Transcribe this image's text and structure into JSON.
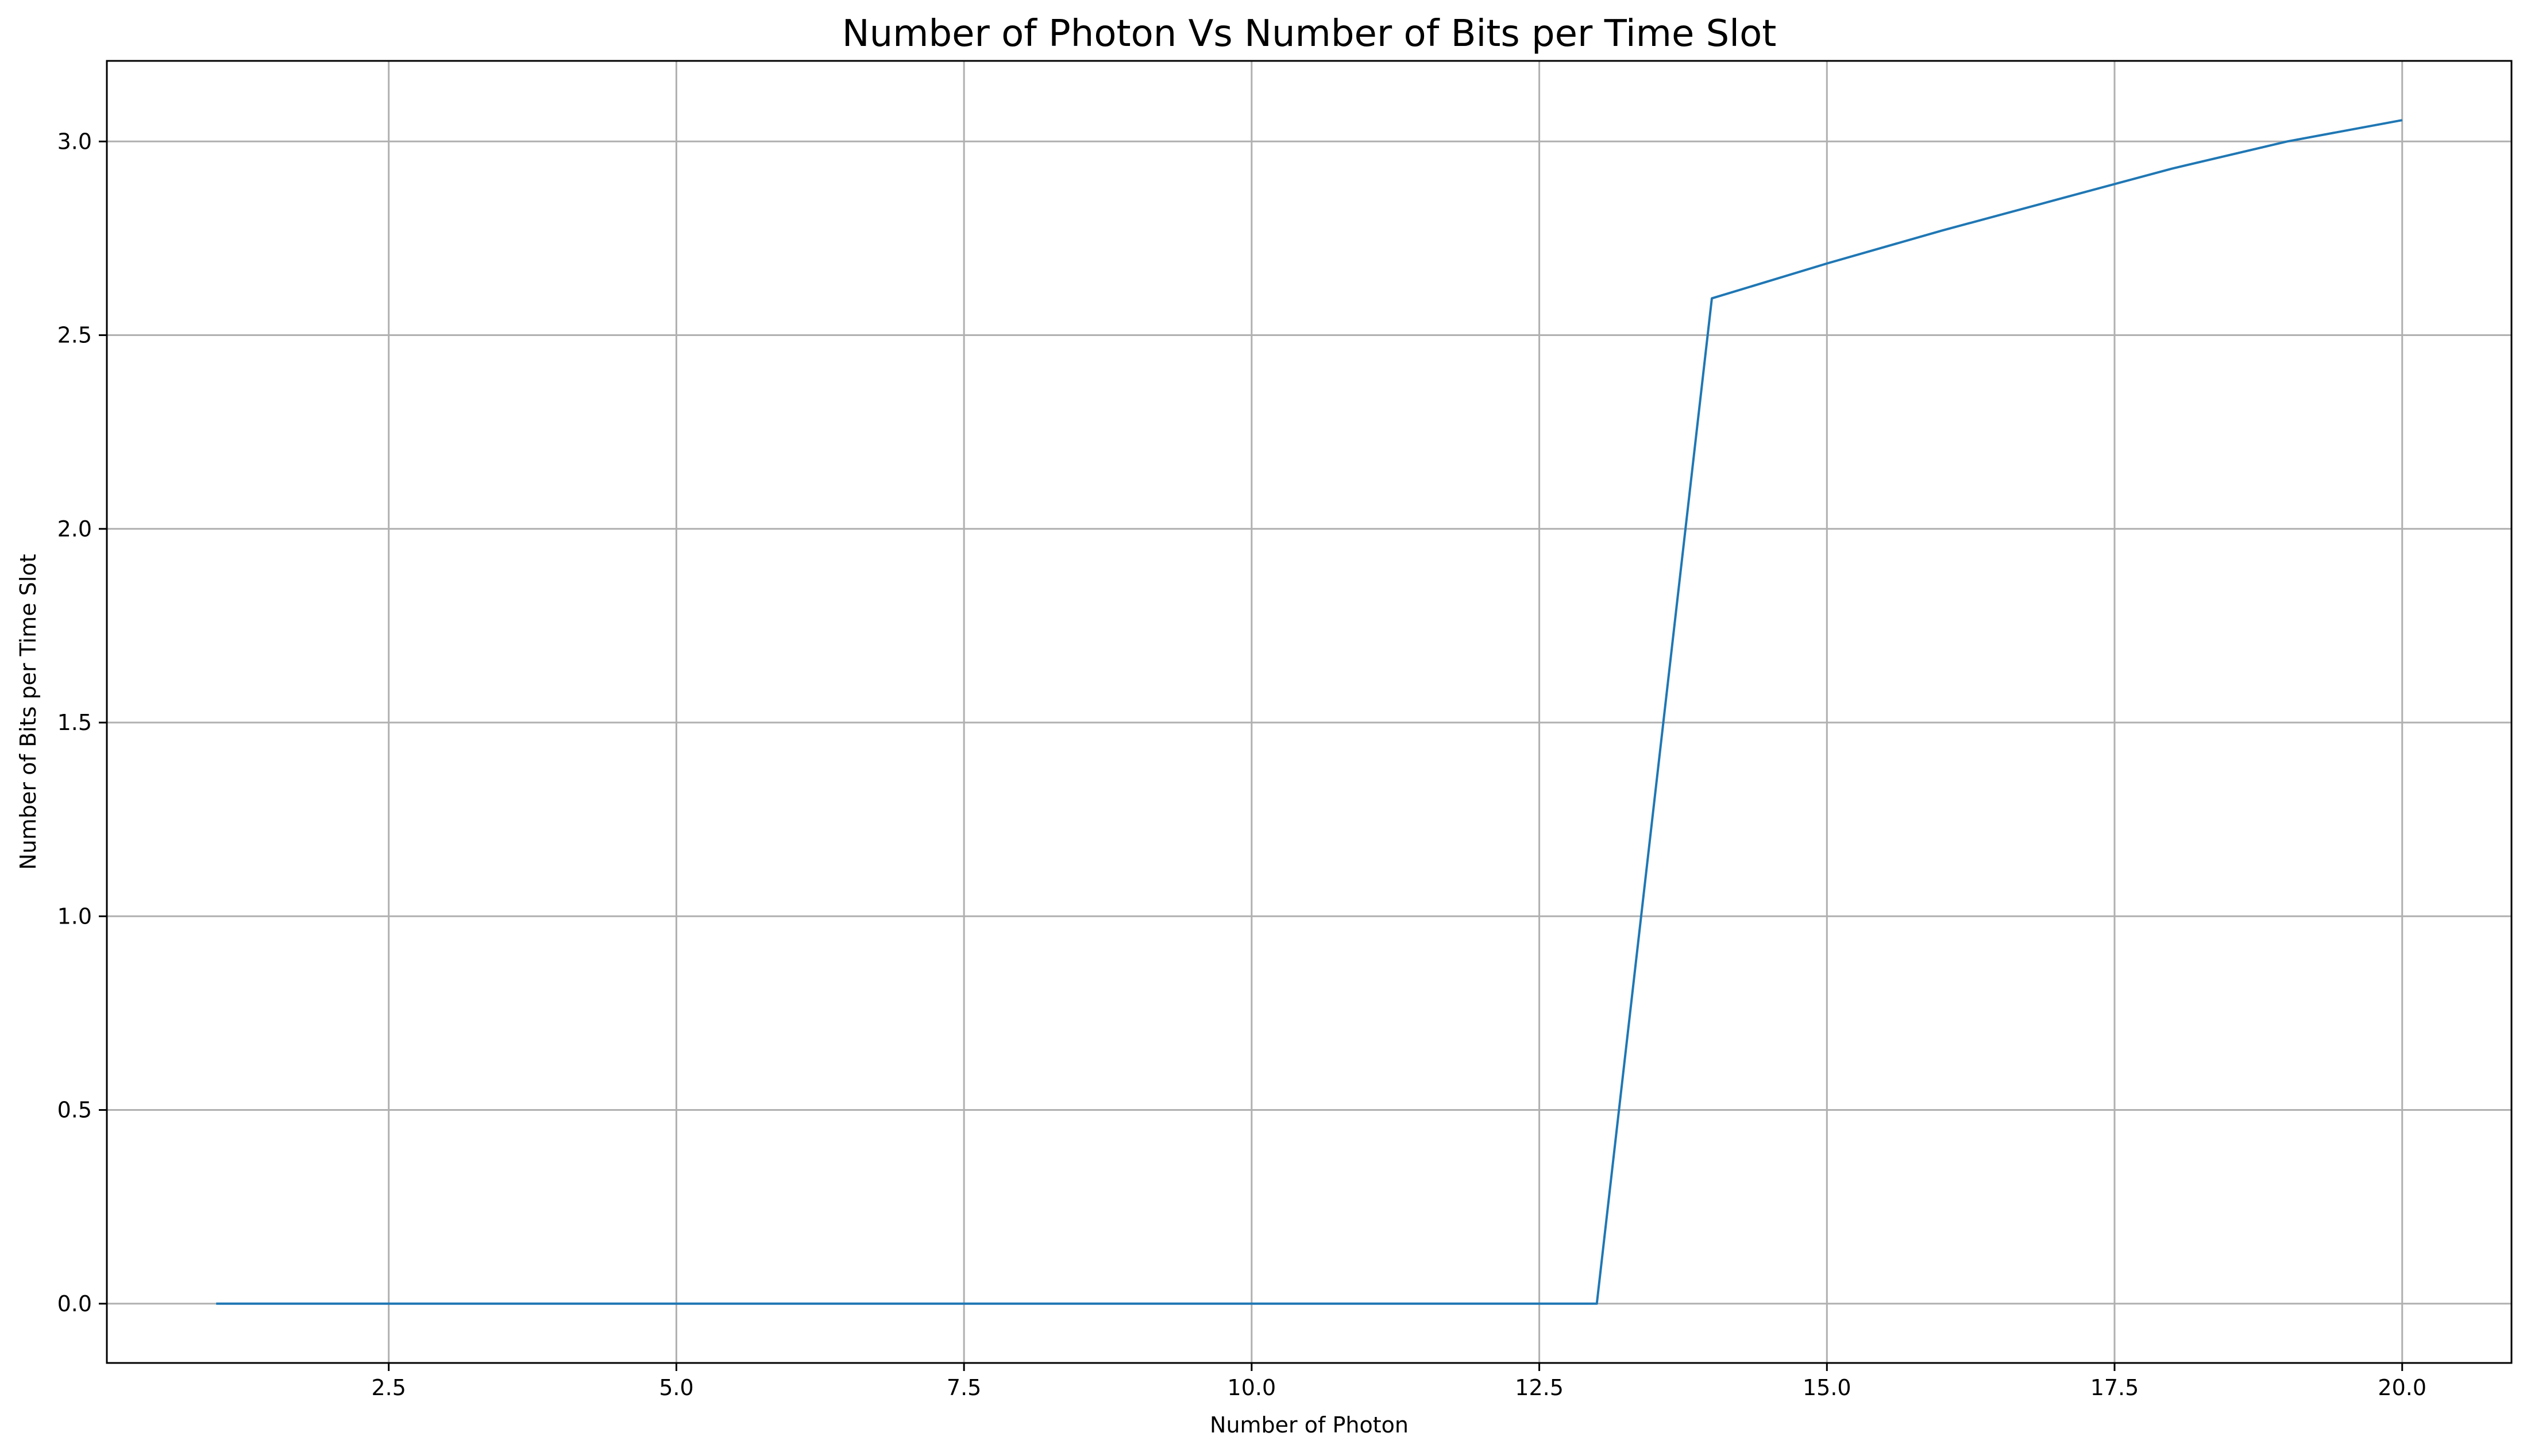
{
  "chart_data": {
    "type": "line",
    "title": "Number of Photon Vs Number of Bits per Time Slot",
    "xlabel": "Number of Photon",
    "ylabel": "Number of Bits per Time Slot",
    "xlim": [
      0.05,
      20.95
    ],
    "ylim": [
      -0.153,
      3.208
    ],
    "xticks": [
      2.5,
      5.0,
      7.5,
      10.0,
      12.5,
      15.0,
      17.5,
      20.0
    ],
    "xtick_labels": [
      "2.5",
      "5.0",
      "7.5",
      "10.0",
      "12.5",
      "15.0",
      "17.5",
      "20.0"
    ],
    "yticks": [
      0.0,
      0.5,
      1.0,
      1.5,
      2.0,
      2.5,
      3.0
    ],
    "ytick_labels": [
      "0.0",
      "0.5",
      "1.0",
      "1.5",
      "2.0",
      "2.5",
      "3.0"
    ],
    "grid": true,
    "series": [
      {
        "color": "#1f77b4",
        "x": [
          1,
          2,
          3,
          4,
          5,
          6,
          7,
          8,
          9,
          10,
          11,
          12,
          13,
          14,
          15,
          16,
          17,
          18,
          19,
          20
        ],
        "y": [
          0,
          0,
          0,
          0,
          0,
          0,
          0,
          0,
          0,
          0,
          0,
          0,
          0,
          2.595,
          2.685,
          2.77,
          2.85,
          2.93,
          3.0,
          3.055
        ]
      }
    ]
  }
}
